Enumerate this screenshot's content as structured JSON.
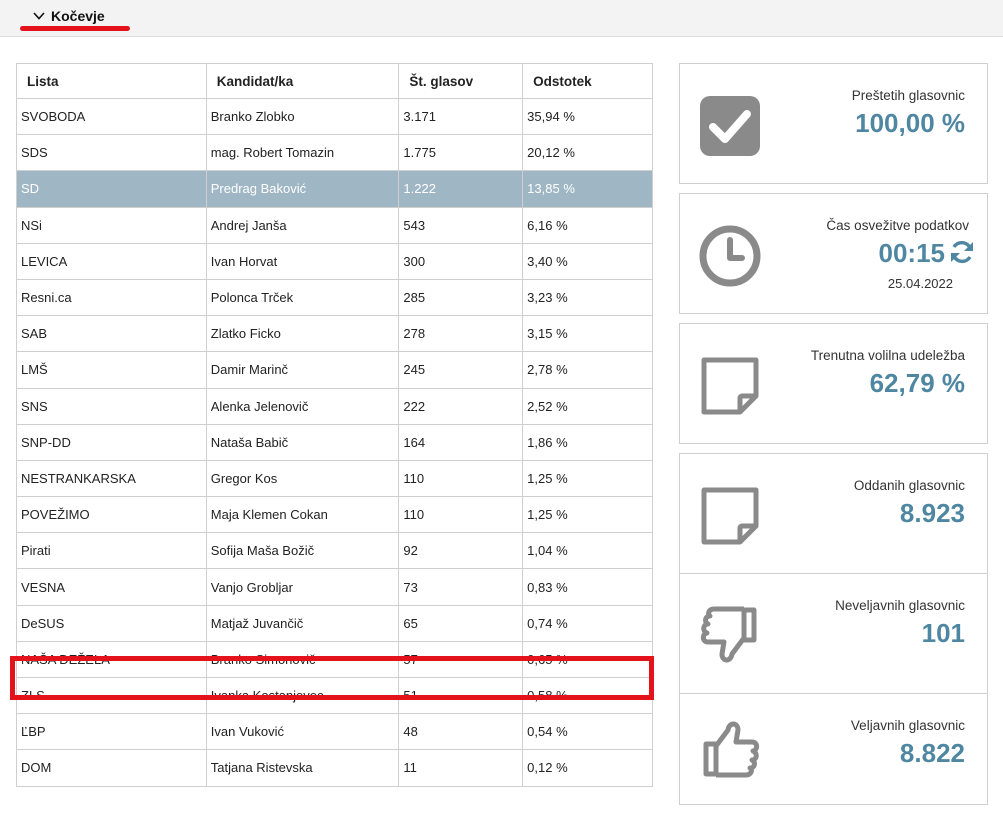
{
  "header": {
    "location": "Kočevje"
  },
  "table": {
    "headers": [
      "Lista",
      "Kandidat/ka",
      "Št. glasov",
      "Odstotek"
    ],
    "rows": [
      [
        "SVOBODA",
        "Branko Zlobko",
        "3.171",
        "35,94 %"
      ],
      [
        "SDS",
        "mag. Robert Tomazin",
        "1.775",
        "20,12 %"
      ],
      [
        "SD",
        "Predrag Baković",
        "1.222",
        "13,85 %"
      ],
      [
        "NSi",
        "Andrej Janša",
        "543",
        "6,16 %"
      ],
      [
        "LEVICA",
        "Ivan Horvat",
        "300",
        "3,40 %"
      ],
      [
        "Resni.ca",
        "Polonca Trček",
        "285",
        "3,23 %"
      ],
      [
        "SAB",
        "Zlatko Ficko",
        "278",
        "3,15 %"
      ],
      [
        "LMŠ",
        "Damir Marinč",
        "245",
        "2,78 %"
      ],
      [
        "SNS",
        "Alenka Jelenovič",
        "222",
        "2,52 %"
      ],
      [
        "SNP-DD",
        "Nataša Babič",
        "164",
        "1,86 %"
      ],
      [
        "NESTRANKARSKA",
        "Gregor Kos",
        "110",
        "1,25 %"
      ],
      [
        "POVEŽIMO",
        "Maja Klemen Cokan",
        "110",
        "1,25 %"
      ],
      [
        "Pirati",
        "Sofija Maša Božič",
        "92",
        "1,04 %"
      ],
      [
        "VESNA",
        "Vanjo Grobljar",
        "73",
        "0,83 %"
      ],
      [
        "DeSUS",
        "Matjaž Juvančič",
        "65",
        "0,74 %"
      ],
      [
        "NAŠA DEŽELA",
        "Branko Simonovič",
        "57",
        "0,65 %"
      ],
      [
        "ZLS",
        "Ivanka Kostanjevec",
        "51",
        "0,58 %"
      ],
      [
        "ĽBP",
        "Ivan Vuković",
        "48",
        "0,54 %"
      ],
      [
        "DOM",
        "Tatjana Ristevska",
        "11",
        "0,12 %"
      ]
    ],
    "selected_row": 2,
    "highlighted_row": 15
  },
  "stats": {
    "counted": {
      "label": "Preštetih glasovnic",
      "value": "100,00 %"
    },
    "refresh": {
      "label": "Čas osvežitve podatkov",
      "value": "00:15",
      "date": "25.04.2022"
    },
    "turnout": {
      "label": "Trenutna volilna udeležba",
      "value": "62,79 %"
    },
    "cast": {
      "label": "Oddanih glasovnic",
      "value": "8.923"
    },
    "invalid": {
      "label": "Neveljavnih glasovnic",
      "value": "101"
    },
    "valid": {
      "label": "Veljavnih glasovnic",
      "value": "8.822"
    }
  },
  "colors": {
    "accent": "#4f87a2",
    "highlight": "#e3121b",
    "selected_row": "#9fb6c4",
    "icon_gray": "#8a8a8a"
  }
}
